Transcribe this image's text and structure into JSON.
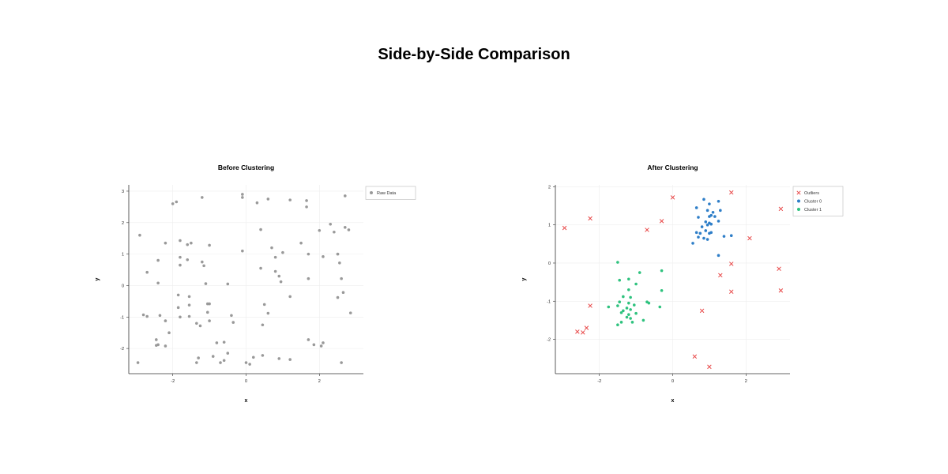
{
  "page": {
    "title": "Side-by-Side Comparison"
  },
  "chart_data": [
    {
      "type": "scatter",
      "title": "Before Clustering",
      "xlabel": "x",
      "ylabel": "y",
      "xlim": [
        -3.2,
        3.2
      ],
      "ylim": [
        -2.8,
        3.2
      ],
      "xticks": [
        -2,
        0,
        2
      ],
      "yticks": [
        -2,
        -1,
        0,
        1,
        2,
        3
      ],
      "grid": true,
      "legend": "top-right",
      "series": [
        {
          "name": "Raw Data",
          "color": "#999999",
          "marker": "circle",
          "points": [
            [
              -2.0,
              2.6
            ],
            [
              -1.9,
              2.66
            ],
            [
              -1.2,
              2.8
            ],
            [
              -0.1,
              2.9
            ],
            [
              -0.1,
              2.8
            ],
            [
              0.3,
              2.63
            ],
            [
              0.6,
              2.75
            ],
            [
              1.2,
              2.72
            ],
            [
              1.65,
              2.7
            ],
            [
              1.65,
              2.5
            ],
            [
              2.7,
              2.85
            ],
            [
              -2.9,
              1.6
            ],
            [
              -2.2,
              1.35
            ],
            [
              -1.8,
              1.43
            ],
            [
              -1.6,
              1.3
            ],
            [
              -1.5,
              1.35
            ],
            [
              -1.0,
              1.28
            ],
            [
              -0.1,
              1.1
            ],
            [
              0.4,
              1.78
            ],
            [
              0.7,
              1.2
            ],
            [
              0.8,
              0.9
            ],
            [
              1.0,
              1.05
            ],
            [
              1.5,
              1.35
            ],
            [
              1.7,
              1.0
            ],
            [
              2.0,
              1.75
            ],
            [
              2.3,
              1.95
            ],
            [
              2.4,
              1.7
            ],
            [
              2.5,
              1.0
            ],
            [
              2.7,
              1.85
            ],
            [
              2.8,
              1.77
            ],
            [
              -2.7,
              0.42
            ],
            [
              -2.4,
              0.8
            ],
            [
              -1.8,
              0.9
            ],
            [
              -1.8,
              0.65
            ],
            [
              -1.6,
              0.82
            ],
            [
              -1.2,
              0.75
            ],
            [
              -1.15,
              0.63
            ],
            [
              -2.4,
              0.08
            ],
            [
              -1.1,
              0.06
            ],
            [
              -0.5,
              0.05
            ],
            [
              0.4,
              0.55
            ],
            [
              0.8,
              0.45
            ],
            [
              0.9,
              0.3
            ],
            [
              0.95,
              0.12
            ],
            [
              1.7,
              0.22
            ],
            [
              2.1,
              0.92
            ],
            [
              2.5,
              1.0
            ],
            [
              2.55,
              0.72
            ],
            [
              2.6,
              0.22
            ],
            [
              -1.85,
              -0.3
            ],
            [
              -1.55,
              -0.35
            ],
            [
              -1.85,
              -0.7
            ],
            [
              -1.55,
              -0.62
            ],
            [
              -1.05,
              -0.58
            ],
            [
              -1.0,
              -0.58
            ],
            [
              -1.05,
              -0.85
            ],
            [
              0.5,
              -0.6
            ],
            [
              0.6,
              -0.88
            ],
            [
              1.2,
              -0.35
            ],
            [
              2.5,
              -0.38
            ],
            [
              2.65,
              -0.22
            ],
            [
              2.85,
              -0.87
            ],
            [
              -2.8,
              -0.93
            ],
            [
              -2.7,
              -0.98
            ],
            [
              -2.35,
              -0.95
            ],
            [
              -2.2,
              -1.12
            ],
            [
              -1.8,
              -1.0
            ],
            [
              -1.55,
              -0.98
            ],
            [
              -1.35,
              -1.2
            ],
            [
              -1.25,
              -1.28
            ],
            [
              -1.0,
              -1.12
            ],
            [
              -0.4,
              -0.95
            ],
            [
              -0.35,
              -1.17
            ],
            [
              0.45,
              -1.25
            ],
            [
              -2.1,
              -1.5
            ],
            [
              -2.45,
              -1.72
            ],
            [
              -2.45,
              -1.9
            ],
            [
              -2.4,
              -1.88
            ],
            [
              -2.2,
              -1.92
            ],
            [
              -0.8,
              -1.82
            ],
            [
              -0.6,
              -1.8
            ],
            [
              -0.9,
              -2.25
            ],
            [
              -0.5,
              -2.15
            ],
            [
              -1.3,
              -2.3
            ],
            [
              -0.6,
              -2.38
            ],
            [
              -0.7,
              -2.45
            ],
            [
              -1.35,
              -2.45
            ],
            [
              0.0,
              -2.45
            ],
            [
              0.1,
              -2.5
            ],
            [
              0.2,
              -2.28
            ],
            [
              0.45,
              -2.22
            ],
            [
              0.9,
              -2.32
            ],
            [
              1.2,
              -2.35
            ],
            [
              1.7,
              -1.72
            ],
            [
              1.85,
              -1.88
            ],
            [
              2.05,
              -1.92
            ],
            [
              2.1,
              -1.82
            ],
            [
              2.6,
              -2.45
            ],
            [
              -2.95,
              -2.45
            ]
          ]
        }
      ]
    },
    {
      "type": "scatter",
      "title": "After Clustering",
      "xlabel": "x",
      "ylabel": "y",
      "xlim": [
        -3.2,
        3.2
      ],
      "ylim": [
        -2.9,
        2.05
      ],
      "xticks": [
        -2,
        0,
        2
      ],
      "yticks": [
        -2,
        -1,
        0,
        1,
        2
      ],
      "grid": true,
      "legend": "top-right",
      "series": [
        {
          "name": "Outliers",
          "color": "#e84a4a",
          "marker": "x",
          "points": [
            [
              -2.95,
              0.92
            ],
            [
              -2.25,
              1.17
            ],
            [
              -0.7,
              0.87
            ],
            [
              -0.3,
              1.1
            ],
            [
              0.0,
              1.72
            ],
            [
              1.6,
              1.85
            ],
            [
              2.1,
              0.65
            ],
            [
              2.95,
              1.42
            ],
            [
              1.6,
              -0.02
            ],
            [
              1.3,
              -0.32
            ],
            [
              1.6,
              -0.75
            ],
            [
              2.9,
              -0.15
            ],
            [
              2.95,
              -0.72
            ],
            [
              0.8,
              -1.25
            ],
            [
              -2.25,
              -1.12
            ],
            [
              -2.35,
              -1.7
            ],
            [
              -2.6,
              -1.8
            ],
            [
              -2.45,
              -1.82
            ],
            [
              0.6,
              -2.45
            ],
            [
              1.0,
              -2.72
            ]
          ]
        },
        {
          "name": "Cluster 0",
          "color": "#2e7ec8",
          "marker": "circle",
          "points": [
            [
              0.85,
              1.67
            ],
            [
              1.0,
              1.55
            ],
            [
              1.25,
              1.62
            ],
            [
              0.65,
              1.45
            ],
            [
              0.95,
              1.38
            ],
            [
              1.3,
              1.38
            ],
            [
              1.1,
              1.33
            ],
            [
              0.7,
              1.2
            ],
            [
              1.0,
              1.22
            ],
            [
              1.05,
              1.25
            ],
            [
              1.15,
              1.22
            ],
            [
              0.9,
              1.08
            ],
            [
              1.0,
              1.05
            ],
            [
              1.25,
              1.1
            ],
            [
              0.95,
              1.0
            ],
            [
              1.05,
              1.02
            ],
            [
              0.8,
              0.95
            ],
            [
              0.9,
              0.85
            ],
            [
              1.05,
              0.8
            ],
            [
              1.0,
              0.78
            ],
            [
              0.65,
              0.8
            ],
            [
              0.75,
              0.78
            ],
            [
              1.4,
              0.7
            ],
            [
              1.6,
              0.72
            ],
            [
              0.7,
              0.68
            ],
            [
              0.85,
              0.65
            ],
            [
              0.95,
              0.62
            ],
            [
              0.55,
              0.52
            ],
            [
              1.25,
              0.2
            ]
          ]
        },
        {
          "name": "Cluster 1",
          "color": "#2ec27e",
          "marker": "circle",
          "points": [
            [
              -1.5,
              0.02
            ],
            [
              -0.3,
              -0.2
            ],
            [
              -0.9,
              -0.25
            ],
            [
              -1.2,
              -0.42
            ],
            [
              -1.45,
              -0.45
            ],
            [
              -1.0,
              -0.55
            ],
            [
              -1.2,
              -0.7
            ],
            [
              -0.3,
              -0.72
            ],
            [
              -1.35,
              -0.88
            ],
            [
              -1.15,
              -0.9
            ],
            [
              -0.7,
              -1.02
            ],
            [
              -1.45,
              -1.02
            ],
            [
              -1.2,
              -1.05
            ],
            [
              -0.65,
              -1.05
            ],
            [
              -1.05,
              -1.1
            ],
            [
              -1.75,
              -1.15
            ],
            [
              -1.5,
              -1.12
            ],
            [
              -0.35,
              -1.15
            ],
            [
              -1.25,
              -1.18
            ],
            [
              -1.15,
              -1.22
            ],
            [
              -1.35,
              -1.25
            ],
            [
              -1.4,
              -1.3
            ],
            [
              -1.2,
              -1.35
            ],
            [
              -1.25,
              -1.42
            ],
            [
              -1.15,
              -1.45
            ],
            [
              -1.0,
              -1.32
            ],
            [
              -0.8,
              -1.5
            ],
            [
              -1.4,
              -1.55
            ],
            [
              -1.1,
              -1.55
            ],
            [
              -1.5,
              -1.62
            ]
          ]
        }
      ]
    }
  ]
}
